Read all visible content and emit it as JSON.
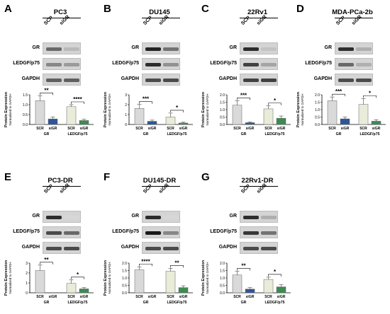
{
  "colors": {
    "scr_bar": "#d9d9d9",
    "gr_sigr_bar": "#2e5597",
    "ledgf_scr_bar": "#e8ecd8",
    "ledgf_sigr_bar": "#3d8b53"
  },
  "panels": [
    {
      "letter": "A",
      "title": "PC3",
      "lanes": [
        "SCR",
        "siGR"
      ],
      "rows": [
        "GR",
        "LEDGF/p75",
        "GAPDH"
      ],
      "ylabel_1": "Protein Expression",
      "ylabel_2": "Normalized to GAPDH",
      "yticks": [
        "0.0",
        "0.5",
        "1.0",
        "1.5"
      ],
      "xlabels": [
        "SCR",
        "siGR",
        "SCR",
        "siGR"
      ],
      "groups": [
        "GR",
        "LEDGF/p75"
      ],
      "sig": [
        "**",
        "****"
      ]
    },
    {
      "letter": "B",
      "title": "DU145",
      "lanes": [
        "SCR",
        "siGR"
      ],
      "rows": [
        "GR",
        "LEDGF/p75",
        "GAPDH"
      ],
      "ylabel_1": "Protein Expression",
      "ylabel_2": "Normalized to GAPDH",
      "yticks": [
        "0",
        "1",
        "2",
        "3"
      ],
      "xlabels": [
        "SCR",
        "siGR",
        "SCR",
        "siGR"
      ],
      "groups": [
        "GR",
        "LEDGF/p75"
      ],
      "sig": [
        "***",
        "*"
      ]
    },
    {
      "letter": "C",
      "title": "22Rv1",
      "lanes": [
        "SCR",
        "siGR"
      ],
      "rows": [
        "GR",
        "LEDGF/p75",
        "GAPDH"
      ],
      "ylabel_1": "Protein Expression",
      "ylabel_2": "Normalized to GAPDH",
      "yticks": [
        "0.0",
        "0.5",
        "1.0",
        "1.5",
        "2.0"
      ],
      "xlabels": [
        "SCR",
        "siGR",
        "SCR",
        "siGR"
      ],
      "groups": [
        "GR",
        "LEDGF/p75"
      ],
      "sig": [
        "***",
        "*"
      ]
    },
    {
      "letter": "D",
      "title": "MDA-PCa-2b",
      "lanes": [
        "SCR",
        "siGR"
      ],
      "rows": [
        "GR",
        "LEDGF/p75",
        "GAPDH"
      ],
      "ylabel_1": "Protein Expression",
      "ylabel_2": "Normalized to GAPDH",
      "yticks": [
        "0.0",
        "0.5",
        "1.0",
        "1.5",
        "2.0"
      ],
      "xlabels": [
        "SCR",
        "siGR",
        "SCR",
        "siGR"
      ],
      "groups": [
        "GR",
        "LEDGF/p75"
      ],
      "sig": [
        "***",
        "*"
      ]
    },
    {
      "letter": "E",
      "title": "PC3-DR",
      "lanes": [
        "SCR",
        "siGR"
      ],
      "rows": [
        "GR",
        "LEDGF/p75",
        "GAPDH"
      ],
      "ylabel_1": "Protein Expression",
      "ylabel_2": "Normalized to GAPDH",
      "yticks": [
        "0",
        "1",
        "2",
        "3"
      ],
      "xlabels": [
        "SCR",
        "siGR",
        "SCR",
        "siGR"
      ],
      "groups": [
        "GR",
        "LEDGF/p75"
      ],
      "sig": [
        "**",
        "*"
      ]
    },
    {
      "letter": "F",
      "title": "DU145-DR",
      "lanes": [
        "SCR",
        "siGR"
      ],
      "rows": [
        "GR",
        "LEDGF/p75",
        "GAPDH"
      ],
      "ylabel_1": "Protein Expression",
      "ylabel_2": "Normalized to GAPDH",
      "yticks": [
        "0.0",
        "0.5",
        "1.0",
        "1.5",
        "2.0"
      ],
      "xlabels": [
        "SCR",
        "siGR",
        "SCR",
        "siGR"
      ],
      "groups": [
        "GR",
        "LEDGF/p75"
      ],
      "sig": [
        "****",
        "**"
      ]
    },
    {
      "letter": "G",
      "title": "22Rv1-DR",
      "lanes": [
        "SCR",
        "siGR"
      ],
      "rows": [
        "GR",
        "LEDGF/p75",
        "GAPDH"
      ],
      "ylabel_1": "Protein Expression",
      "ylabel_2": "Normalized to GAPDH",
      "yticks": [
        "0.0",
        "0.5",
        "1.0",
        "1.5",
        "2.0"
      ],
      "xlabels": [
        "SCR",
        "siGR",
        "SCR",
        "siGR"
      ],
      "groups": [
        "GR",
        "LEDGF/p75"
      ],
      "sig": [
        "**",
        "*"
      ]
    }
  ],
  "chart_data": [
    {
      "type": "bar",
      "panel": "A",
      "categories": [
        "SCR",
        "siGR",
        "SCR",
        "siGR"
      ],
      "groups": [
        "GR",
        "LEDGF/p75"
      ],
      "values": [
        1.2,
        0.28,
        0.9,
        0.2
      ],
      "errors": [
        0.25,
        0.1,
        0.1,
        0.06
      ],
      "ylim": [
        0,
        1.5
      ]
    },
    {
      "type": "bar",
      "panel": "B",
      "categories": [
        "SCR",
        "siGR",
        "SCR",
        "siGR"
      ],
      "groups": [
        "GR",
        "LEDGF/p75"
      ],
      "values": [
        1.62,
        0.32,
        0.75,
        0.15
      ],
      "errors": [
        0.4,
        0.12,
        0.4,
        0.08
      ],
      "ylim": [
        0,
        3
      ]
    },
    {
      "type": "bar",
      "panel": "C",
      "categories": [
        "SCR",
        "siGR",
        "SCR",
        "siGR"
      ],
      "groups": [
        "GR",
        "LEDGF/p75"
      ],
      "values": [
        1.3,
        0.12,
        1.05,
        0.42
      ],
      "errors": [
        0.3,
        0.05,
        0.2,
        0.15
      ],
      "ylim": [
        0,
        2.0
      ]
    },
    {
      "type": "bar",
      "panel": "D",
      "categories": [
        "SCR",
        "siGR",
        "SCR",
        "siGR"
      ],
      "groups": [
        "GR",
        "LEDGF/p75"
      ],
      "values": [
        1.6,
        0.38,
        1.35,
        0.22
      ],
      "errors": [
        0.25,
        0.12,
        0.4,
        0.1
      ],
      "ylim": [
        0,
        2.0
      ]
    },
    {
      "type": "bar",
      "panel": "E",
      "categories": [
        "SCR",
        "siGR",
        "SCR",
        "siGR"
      ],
      "groups": [
        "GR",
        "LEDGF/p75"
      ],
      "values": [
        2.25,
        0.0,
        0.95,
        0.4
      ],
      "errors": [
        0.55,
        0.0,
        0.35,
        0.12
      ],
      "ylim": [
        0,
        3
      ]
    },
    {
      "type": "bar",
      "panel": "F",
      "categories": [
        "SCR",
        "siGR",
        "SCR",
        "siGR"
      ],
      "groups": [
        "GR",
        "LEDGF/p75"
      ],
      "values": [
        1.55,
        0.0,
        1.45,
        0.35
      ],
      "errors": [
        0.2,
        0.0,
        0.2,
        0.12
      ],
      "ylim": [
        0,
        2.0
      ]
    },
    {
      "type": "bar",
      "panel": "G",
      "categories": [
        "SCR",
        "siGR",
        "SCR",
        "siGR"
      ],
      "groups": [
        "GR",
        "LEDGF/p75"
      ],
      "values": [
        1.2,
        0.25,
        0.9,
        0.4
      ],
      "errors": [
        0.25,
        0.1,
        0.15,
        0.15
      ],
      "ylim": [
        0,
        2.0
      ]
    }
  ]
}
